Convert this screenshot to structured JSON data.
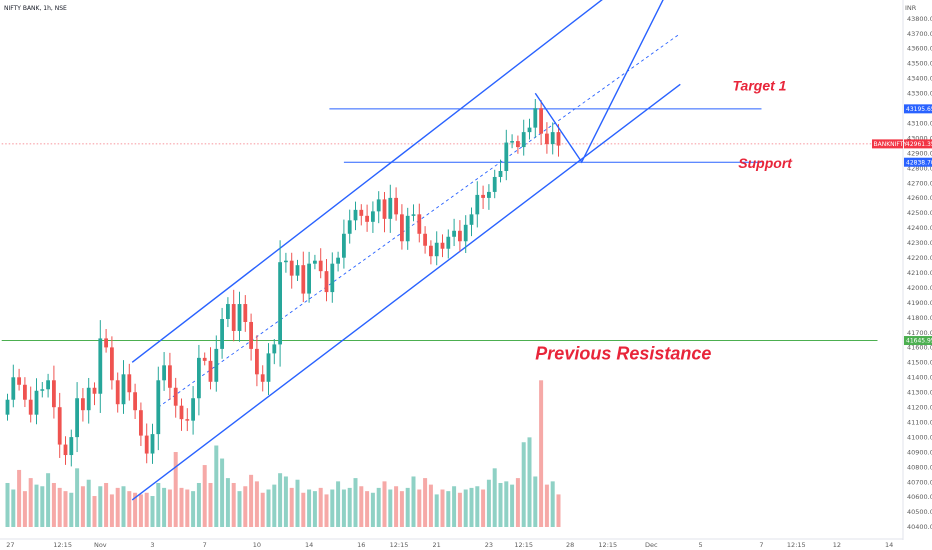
{
  "chart_data": {
    "type": "candlestick",
    "title": "NIFTY BANK, 1h, NSE",
    "currency": "INR",
    "ylim": [
      40330,
      43920
    ],
    "y_ticks": [
      43800,
      43700,
      43600,
      43500,
      43400,
      43300,
      43200,
      43100,
      43000,
      42900,
      42800,
      42700,
      42600,
      42500,
      42400,
      42300,
      42200,
      42100,
      42000,
      41900,
      41800,
      41700,
      41600,
      41500,
      41400,
      41300,
      41200,
      41100,
      41000,
      40900,
      40800,
      40700,
      40600,
      40500,
      40400
    ],
    "x_ticks": [
      {
        "label": "27",
        "x": 0.5
      },
      {
        "label": "12:15",
        "x": 9.5
      },
      {
        "label": "Nov",
        "x": 16
      },
      {
        "label": "3",
        "x": 25
      },
      {
        "label": "7",
        "x": 34
      },
      {
        "label": "10",
        "x": 43
      },
      {
        "label": "14",
        "x": 52
      },
      {
        "label": "16",
        "x": 61
      },
      {
        "label": "12:15",
        "x": 67.5
      },
      {
        "label": "21",
        "x": 74
      },
      {
        "label": "23",
        "x": 83
      },
      {
        "label": "12:15",
        "x": 89
      },
      {
        "label": "28",
        "x": 97
      },
      {
        "label": "12:15",
        "x": 103.5
      },
      {
        "label": "Dec",
        "x": 111
      },
      {
        "label": "5",
        "x": 119.5
      },
      {
        "label": "7",
        "x": 130
      },
      {
        "label": "12:15",
        "x": 136
      },
      {
        "label": "12",
        "x": 143
      },
      {
        "label": "14",
        "x": 152
      }
    ],
    "closes": [
      41250,
      41400,
      41350,
      41250,
      41150,
      41310,
      41320,
      41380,
      41200,
      40950,
      40880,
      41000,
      41260,
      41180,
      41330,
      41290,
      41660,
      41600,
      41380,
      41220,
      41420,
      41300,
      41180,
      41010,
      40890,
      41020,
      41380,
      41480,
      41330,
      41210,
      41120,
      41110,
      41260,
      41530,
      41510,
      41370,
      41590,
      41790,
      41890,
      41710,
      41890,
      41770,
      41590,
      41420,
      41370,
      41560,
      41620,
      42170,
      42180,
      42080,
      42150,
      41960,
      42160,
      42180,
      42110,
      41970,
      42160,
      42200,
      42360,
      42450,
      42520,
      42480,
      42440,
      42510,
      42590,
      42460,
      42600,
      42490,
      42310,
      42480,
      42490,
      42360,
      42280,
      42210,
      42300,
      42260,
      42340,
      42380,
      42310,
      42420,
      42490,
      42620,
      42600,
      42640,
      42740,
      42780,
      42970,
      42980,
      42940,
      43040,
      43070,
      43200,
      43030,
      42960,
      43040,
      42950
    ],
    "volumes": [
      270,
      230,
      350,
      220,
      300,
      260,
      250,
      330,
      270,
      240,
      220,
      210,
      360,
      250,
      290,
      190,
      250,
      270,
      200,
      240,
      250,
      220,
      210,
      200,
      210,
      190,
      270,
      240,
      230,
      460,
      240,
      230,
      220,
      270,
      380,
      270,
      500,
      420,
      300,
      270,
      220,
      250,
      320,
      280,
      210,
      230,
      260,
      330,
      310,
      240,
      290,
      210,
      230,
      220,
      240,
      200,
      230,
      280,
      230,
      240,
      300,
      250,
      220,
      210,
      240,
      280,
      230,
      250,
      220,
      240,
      310,
      230,
      300,
      260,
      200,
      230,
      220,
      250,
      210,
      230,
      240,
      250,
      230,
      290,
      360,
      270,
      280,
      260,
      300,
      520,
      550,
      310,
      900,
      260,
      280,
      200
    ],
    "series": [
      {
        "name": "NIFTY BANK",
        "last": 42961.35
      }
    ],
    "price_labels": [
      {
        "label": "BANKNIFTY",
        "value": 42961.35,
        "text": "42961.35",
        "color": "#f23645"
      },
      {
        "value": 43195.65,
        "text": "43195.65",
        "color": "#2962ff"
      },
      {
        "value": 42838.7,
        "text": "42838.70",
        "color": "#2962ff"
      },
      {
        "value": 41645.95,
        "text": "41645.95",
        "color": "#4caf50"
      }
    ],
    "levels": [
      {
        "value": 43195.65,
        "x_from": 55.5,
        "x_to": 130,
        "color": "#2962ff"
      },
      {
        "value": 42838.7,
        "x_from": 58,
        "x_to": 130,
        "color": "#2962ff"
      },
      {
        "value": 41645.95,
        "x_from": -1,
        "x_to": 150,
        "color": "#4caf50"
      },
      {
        "value": 42961.35,
        "x_from": -1,
        "x_to": 150,
        "color": "#f23645",
        "dotted": true
      }
    ],
    "channel": {
      "upper": [
        {
          "x": 21.5,
          "y": 41500
        },
        {
          "x": 110,
          "y": 44150
        }
      ],
      "middle": [
        {
          "x": 26,
          "y": 41200
        },
        {
          "x": 116,
          "y": 43700
        }
      ],
      "lower": [
        {
          "x": 21.5,
          "y": 40580
        },
        {
          "x": 116,
          "y": 43360
        }
      ]
    },
    "projection": [
      {
        "x": 91,
        "y": 43300
      },
      {
        "x": 99,
        "y": 42840
      },
      {
        "x": 114,
        "y": 44000
      }
    ],
    "annotations": [
      {
        "text": "Target 1",
        "x": 125,
        "y": 43320,
        "size": 14
      },
      {
        "text": "Support",
        "x": 126,
        "y": 42800,
        "size": 14
      },
      {
        "text": "Previous Resistance",
        "x": 91,
        "y": 41520,
        "size": 18
      }
    ],
    "colors": {
      "up": "#26a69a",
      "down": "#ef5350",
      "vol_up": "#8fd1c5",
      "vol_down": "#f6a9a7",
      "line": "#2962ff",
      "resistance": "#4caf50"
    }
  }
}
